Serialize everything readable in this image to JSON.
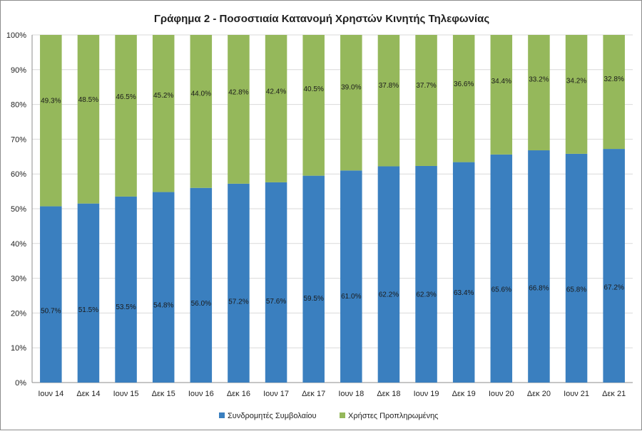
{
  "chart_data": {
    "type": "bar",
    "stacked": true,
    "title": "Γράφημα 2 - Ποσοστιαία Κατανομή Χρηστών Κινητής Τηλεφωνίας",
    "xlabel": "",
    "ylabel": "",
    "ylim": [
      0,
      100
    ],
    "y_ticks": [
      "0%",
      "10%",
      "20%",
      "30%",
      "40%",
      "50%",
      "60%",
      "70%",
      "80%",
      "90%",
      "100%"
    ],
    "grid": true,
    "legend_position": "bottom",
    "categories": [
      "Ιουν 14",
      "Δεκ 14",
      "Ιουν 15",
      "Δεκ 15",
      "Ιουν 16",
      "Δεκ 16",
      "Ιουν 17",
      "Δεκ 17",
      "Ιουν 18",
      "Δεκ 18",
      "Ιουν 19",
      "Δεκ 19",
      "Ιουν 20",
      "Δεκ 20",
      "Ιουν 21",
      "Δεκ 21"
    ],
    "series": [
      {
        "name": "Συνδρομητές Συμβολαίου",
        "color": "#3a7fbf",
        "values": [
          50.7,
          51.5,
          53.5,
          54.8,
          56.0,
          57.2,
          57.6,
          59.5,
          61.0,
          62.2,
          62.3,
          63.4,
          65.6,
          66.8,
          65.8,
          67.2
        ],
        "labels": [
          "50.7%",
          "51.5%",
          "53.5%",
          "54.8%",
          "56.0%",
          "57.2%",
          "57.6%",
          "59.5%",
          "61.0%",
          "62.2%",
          "62.3%",
          "63.4%",
          "65.6%",
          "66.8%",
          "65.8%",
          "67.2%"
        ]
      },
      {
        "name": "Χρήστες Προπληρωμένης",
        "color": "#95b85b",
        "values": [
          49.3,
          48.5,
          46.5,
          45.2,
          44.0,
          42.8,
          42.4,
          40.5,
          39.0,
          37.8,
          37.7,
          36.6,
          34.4,
          33.2,
          34.2,
          32.8
        ],
        "labels": [
          "49.3%",
          "48.5%",
          "46.5%",
          "45.2%",
          "44.0%",
          "42.8%",
          "42.4%",
          "40.5%",
          "39.0%",
          "37.8%",
          "37.7%",
          "36.6%",
          "34.4%",
          "33.2%",
          "34.2%",
          "32.8%"
        ]
      }
    ]
  }
}
